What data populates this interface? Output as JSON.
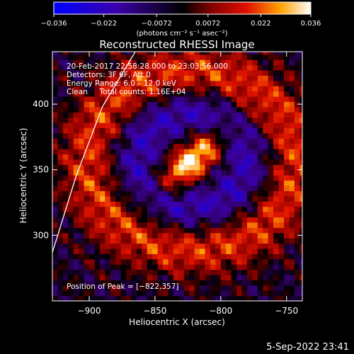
{
  "chart_data": {
    "type": "heatmap",
    "title": "Reconstructed RHESSI Image",
    "xlabel": "Heliocentric X (arcsec)",
    "ylabel": "Heliocentric Y (arcsec)",
    "xlim": [
      -928,
      -738
    ],
    "ylim": [
      250,
      440
    ],
    "x_ticks": [
      -900,
      -850,
      -800,
      -750
    ],
    "x_tick_labels": [
      "−900",
      "−850",
      "−800",
      "−750"
    ],
    "y_ticks": [
      300,
      350,
      400
    ],
    "y_tick_labels": [
      "300",
      "350",
      "400"
    ],
    "colorbar": {
      "range": [
        -0.036,
        0.036
      ],
      "ticks": [
        -0.036,
        -0.022,
        -0.0072,
        0.0072,
        0.022,
        0.036
      ],
      "tick_labels": [
        "−0.036",
        "−0.022",
        "−0.0072",
        "0.0072",
        "0.022",
        "0.036"
      ],
      "unit_label": "(photons cm⁻² s⁻¹ asec⁻²)"
    },
    "annotations": [
      "20-Feb-2017 22:58:28.000 to 23:03:56.000",
      "Detectors: 3F 6F, Att 0",
      "Energy Range: 6.0 – 12.0 keV",
      "Clean     Total counts: 1.16E+04"
    ],
    "peak_label": "Position of Peak = [−822,357]",
    "peak": {
      "x": -822,
      "y": 357,
      "value": 0.036
    },
    "limb": [
      {
        "x": -928,
        "y": 287
      },
      {
        "x": -910,
        "y": 345
      },
      {
        "x": -890,
        "y": 398
      },
      {
        "x": -865,
        "y": 440
      }
    ]
  },
  "footer_timestamp": "5-Sep-2022 23:41"
}
